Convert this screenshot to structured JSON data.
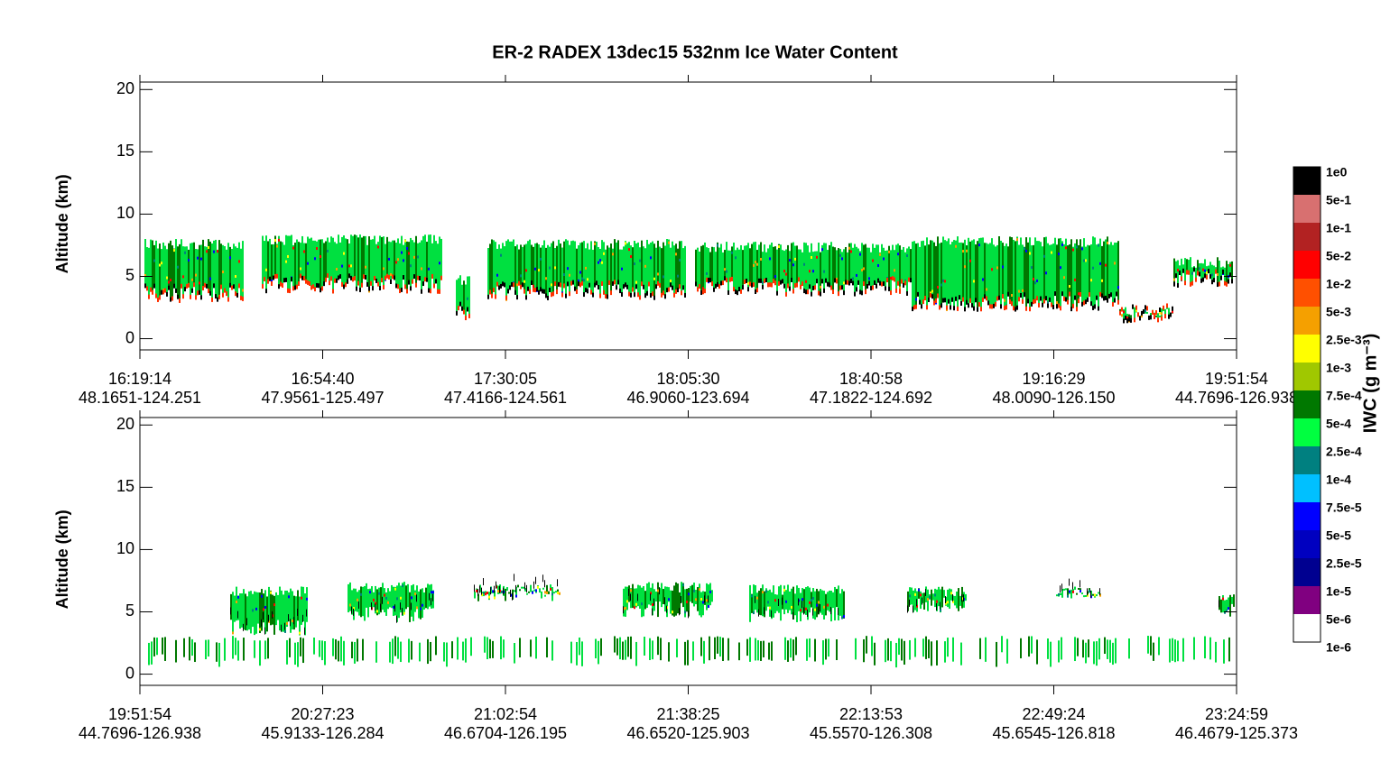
{
  "title": "ER-2  RADEX  13dec15  532nm Ice Water Content",
  "colorbar": {
    "label": "IWC (g m⁻³)",
    "colors": [
      "#000000",
      "#d87070",
      "#b22222",
      "#ff0000",
      "#ff5000",
      "#f5a000",
      "#ffff00",
      "#a0c800",
      "#007800",
      "#00ff40",
      "#008080",
      "#00c0ff",
      "#0000ff",
      "#0000c0",
      "#000090",
      "#800080",
      "#ffffff"
    ],
    "ticks": [
      {
        "value": 1,
        "label": "1e0"
      },
      {
        "value": 0.5,
        "label": "5e-1"
      },
      {
        "value": 0.1,
        "label": "1e-1"
      },
      {
        "value": 0.05,
        "label": "5e-2"
      },
      {
        "value": 0.01,
        "label": "1e-2"
      },
      {
        "value": 0.005,
        "label": "5e-3"
      },
      {
        "value": 0.0025,
        "label": "2.5e-3"
      },
      {
        "value": 0.001,
        "label": "1e-3"
      },
      {
        "value": 0.00075,
        "label": "7.5e-4"
      },
      {
        "value": 0.0005,
        "label": "5e-4"
      },
      {
        "value": 0.00025,
        "label": "2.5e-4"
      },
      {
        "value": 0.0001,
        "label": "1e-4"
      },
      {
        "value": 7.5e-05,
        "label": "7.5e-5"
      },
      {
        "value": 5e-05,
        "label": "5e-5"
      },
      {
        "value": 2.5e-05,
        "label": "2.5e-5"
      },
      {
        "value": 1e-05,
        "label": "1e-5"
      },
      {
        "value": 5e-06,
        "label": "5e-6"
      },
      {
        "value": 1e-06,
        "label": "1e-6"
      }
    ]
  },
  "chart_data": [
    {
      "type": "curtain",
      "ylabel": "Altitude (km)",
      "ylim": [
        -0.9,
        20.6
      ],
      "yticks": [
        0,
        5,
        10,
        15,
        20
      ],
      "categories": [
        "16:19:14",
        "16:54:40",
        "17:30:05",
        "18:05:30",
        "18:40:58",
        "19:16:29",
        "19:51:54"
      ],
      "locations": [
        "48.1651-124.251",
        "47.9561-125.497",
        "47.4166-124.561",
        "46.9060-123.694",
        "47.1822-124.692",
        "48.0090-126.150",
        "44.7696-126.938"
      ]
    },
    {
      "type": "curtain",
      "ylabel": "Altitude (km)",
      "ylim": [
        -0.9,
        20.6
      ],
      "yticks": [
        0,
        5,
        10,
        15,
        20
      ],
      "categories": [
        "19:51:54",
        "20:27:23",
        "21:02:54",
        "21:38:25",
        "22:13:53",
        "22:49:24",
        "23:24:59"
      ],
      "locations": [
        "44.7696-126.938",
        "45.9133-126.284",
        "46.6704-126.195",
        "46.6520-125.903",
        "45.5570-126.308",
        "45.6545-126.818",
        "46.4679-125.373"
      ]
    }
  ]
}
